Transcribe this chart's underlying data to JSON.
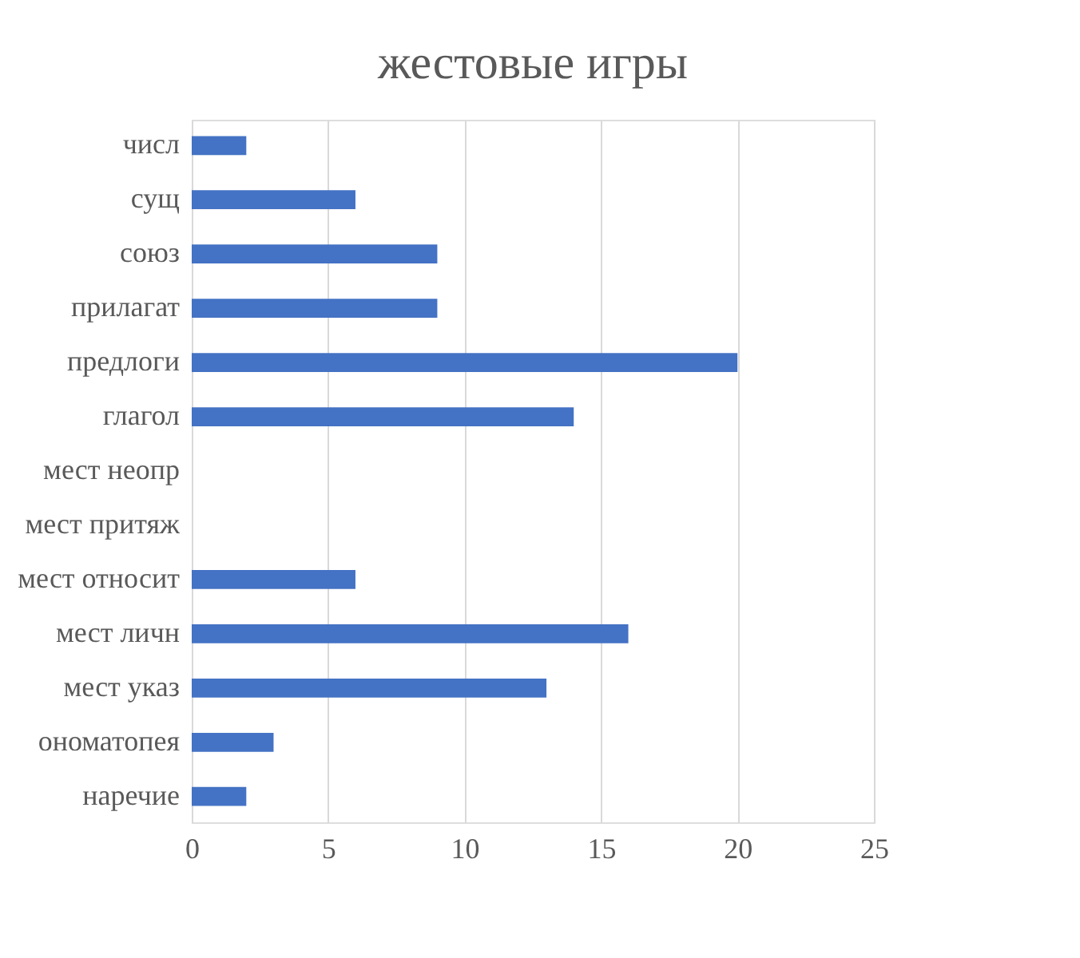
{
  "chart_data": {
    "type": "bar",
    "orientation": "horizontal",
    "title": "жестовые игры",
    "categories": [
      "числ",
      "сущ",
      "союз",
      "прилагат",
      "предлоги",
      "глагол",
      "мест неопр",
      "мест притяж",
      "мест относит",
      "мест личн",
      "мест указ",
      "ономатопея",
      "наречие"
    ],
    "values": [
      2,
      6,
      9,
      9,
      20,
      14,
      0,
      0,
      6,
      16,
      13,
      3,
      2
    ],
    "color": "#4472c4",
    "xlim": [
      0,
      25
    ],
    "xticks": [
      0,
      5,
      10,
      15,
      20,
      25
    ],
    "grid": "x"
  }
}
